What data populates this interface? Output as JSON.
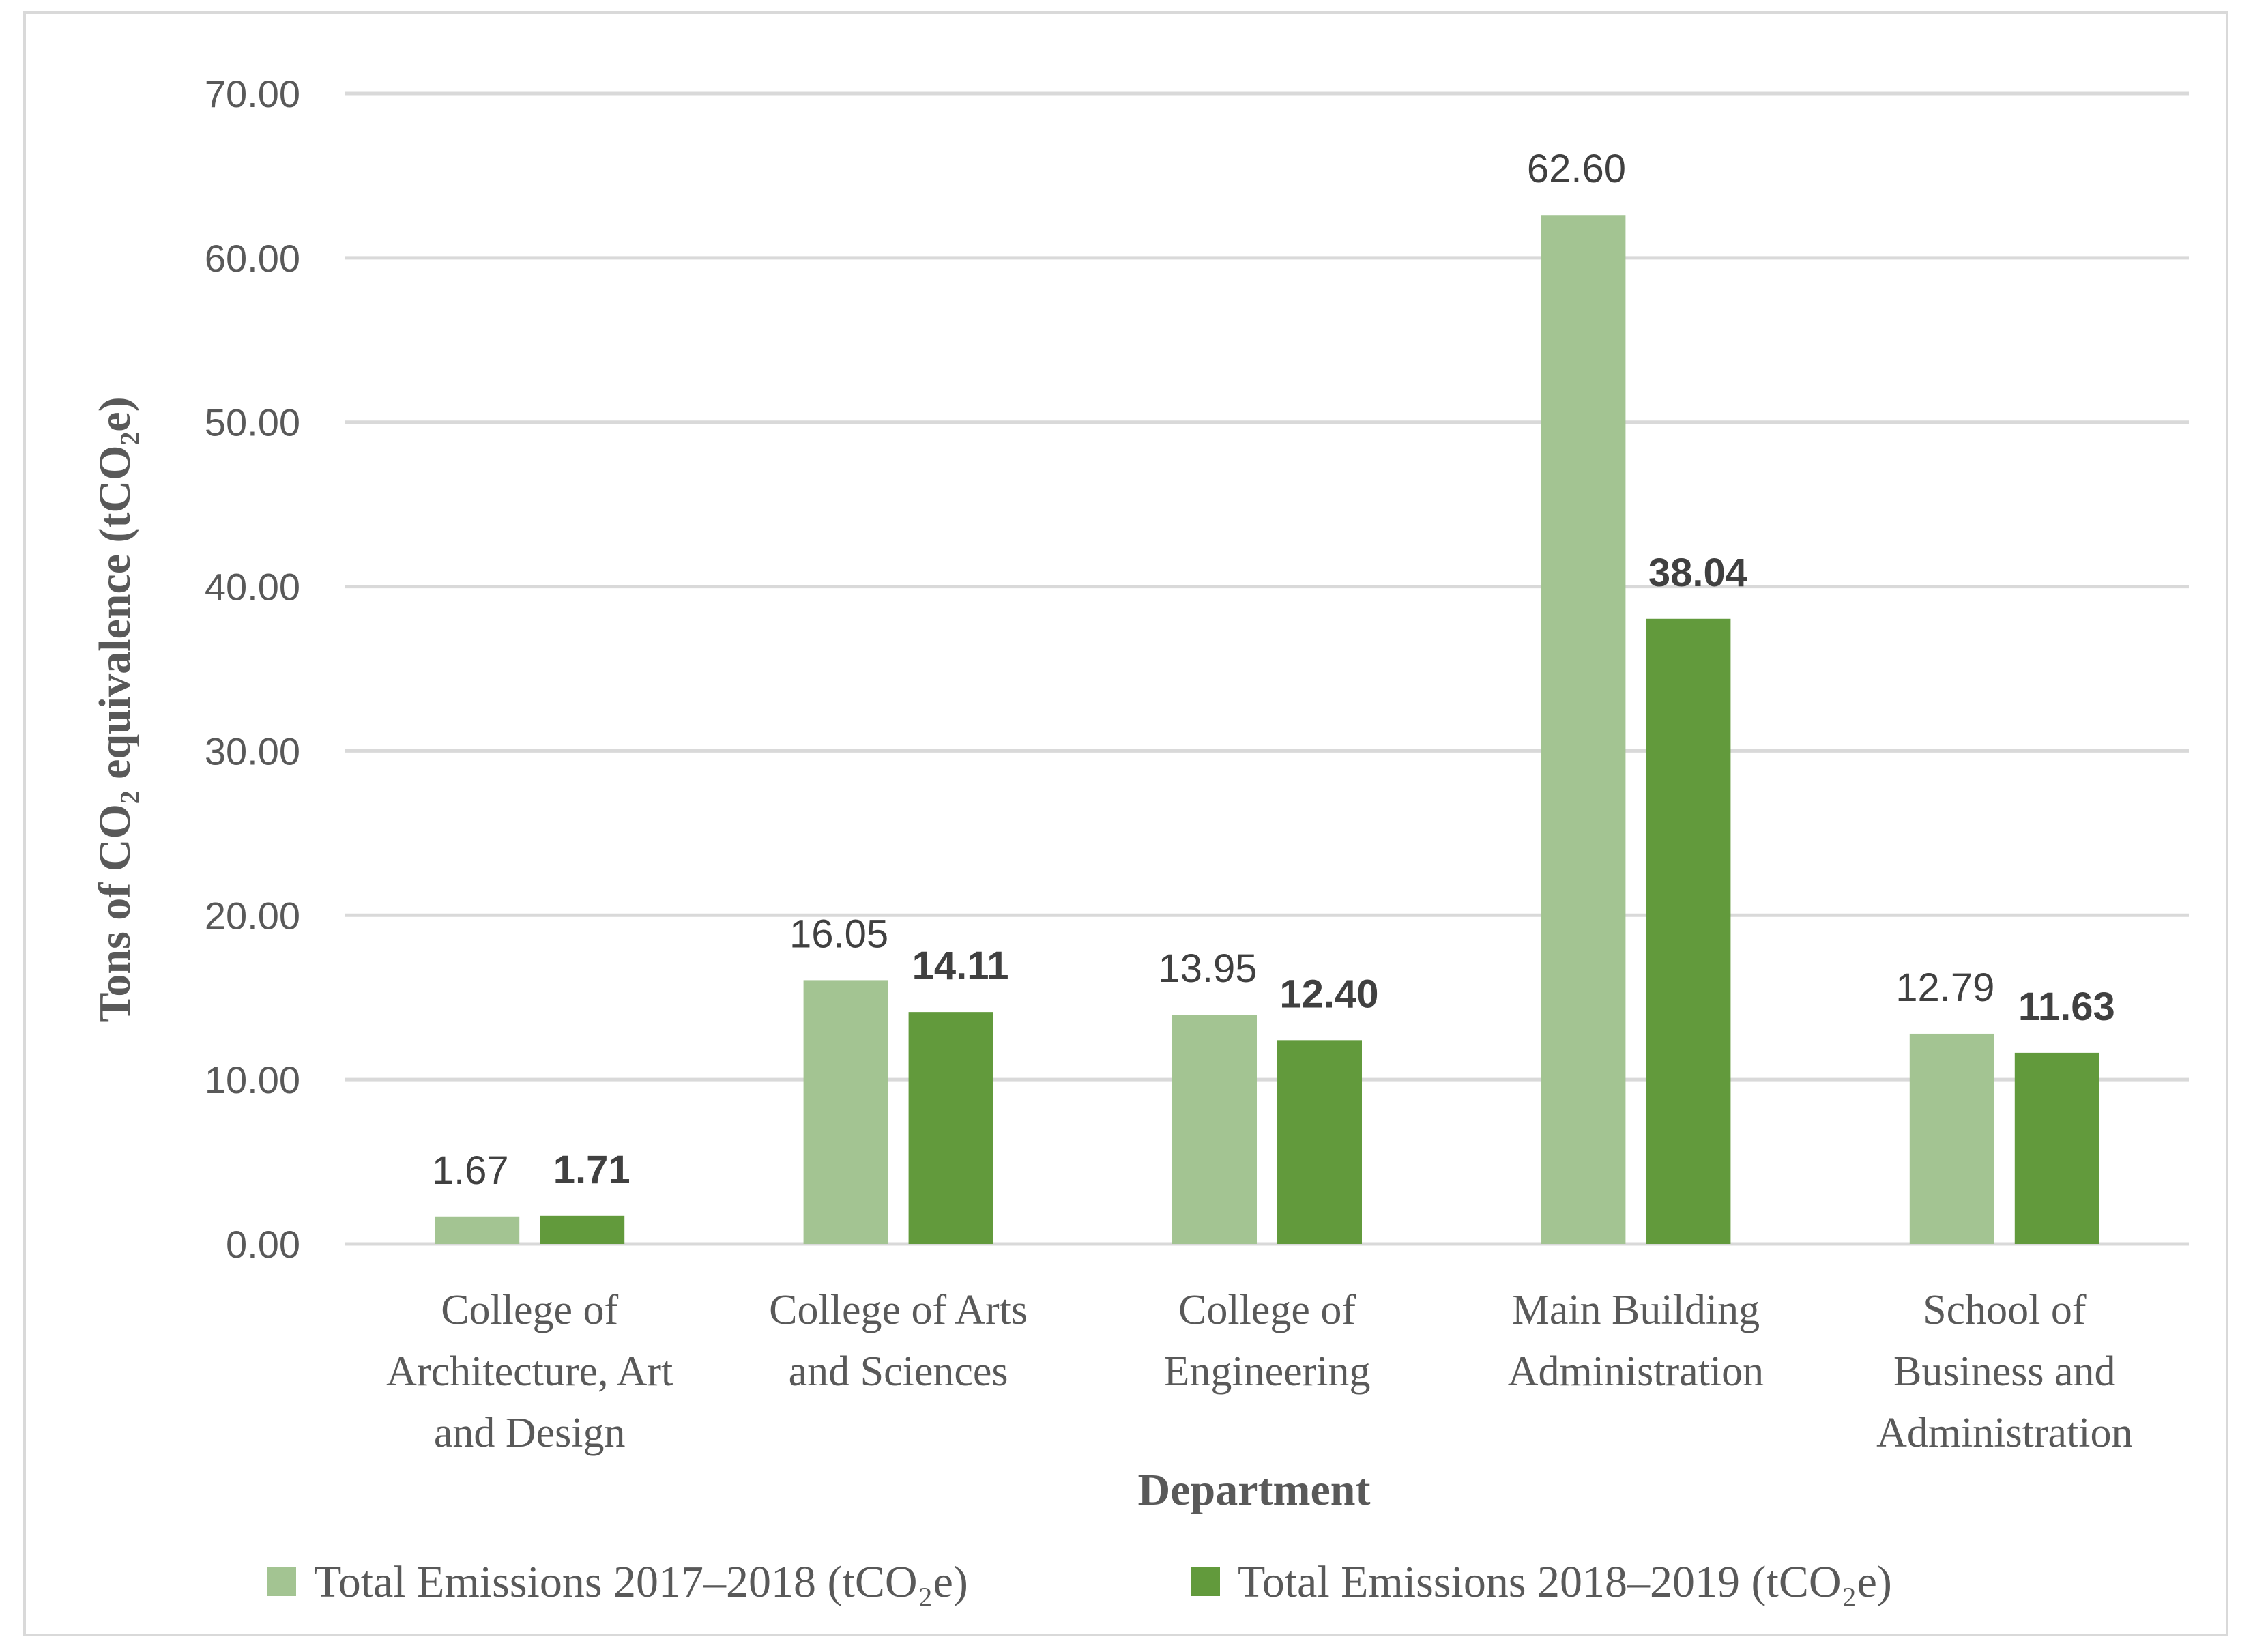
{
  "chart_data": {
    "type": "bar",
    "xlabel": "Department",
    "ylabel": "Tons of CO₂ equivalence (tCO₂e)",
    "ylim": [
      0,
      70
    ],
    "yticks": [
      "0.00",
      "10.00",
      "20.00",
      "30.00",
      "40.00",
      "50.00",
      "60.00",
      "70.00"
    ],
    "grid": true,
    "legend_position": "bottom",
    "categories": [
      [
        "College of",
        "Architecture, Art",
        "and Design"
      ],
      [
        "College of Arts",
        "and Sciences"
      ],
      [
        "College of",
        "Engineering"
      ],
      [
        "Main Building",
        "Administration"
      ],
      [
        "School of",
        "Business and",
        "Administration"
      ]
    ],
    "series": [
      {
        "name": "Total Emissions 2017–2018 (tCO₂e)",
        "color": "#a3c492",
        "values": [
          1.67,
          16.05,
          13.95,
          62.6,
          12.79
        ],
        "labels": [
          "1.67",
          "16.05",
          "13.95",
          "62.60",
          "12.79"
        ]
      },
      {
        "name": "Total Emissions 2018–2019 (tCO₂e)",
        "color": "#629a3c",
        "values": [
          1.71,
          14.11,
          12.4,
          38.04,
          11.63
        ],
        "labels": [
          "1.71",
          "14.11",
          "12.40",
          "38.04",
          "11.63"
        ]
      }
    ]
  }
}
